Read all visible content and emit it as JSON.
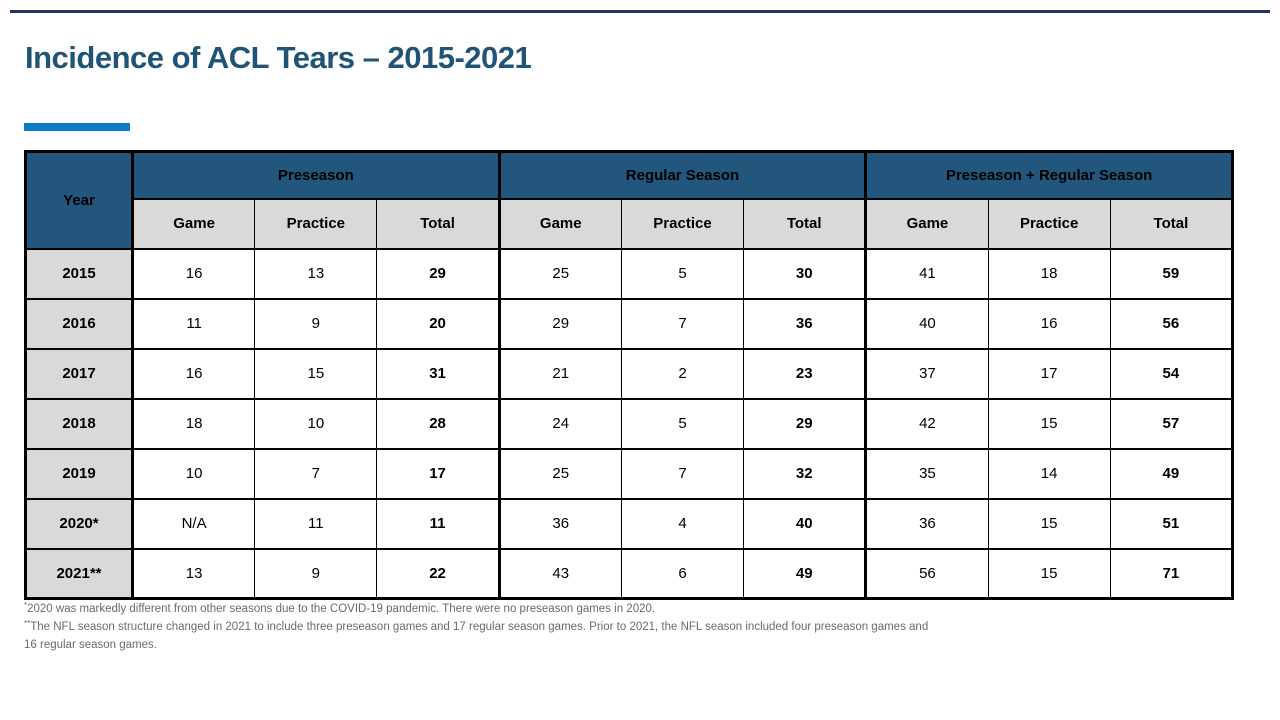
{
  "title": "Incidence of ACL Tears – 2015-2021",
  "table": {
    "year_header": "Year",
    "group_headers": [
      "Preseason",
      "Regular Season",
      "Preseason + Regular Season"
    ],
    "sub_headers": [
      "Game",
      "Practice",
      "Total"
    ],
    "rows": [
      {
        "year": "2015",
        "cells": [
          "16",
          "13",
          "29",
          "25",
          "5",
          "30",
          "41",
          "18",
          "59"
        ]
      },
      {
        "year": "2016",
        "cells": [
          "11",
          "9",
          "20",
          "29",
          "7",
          "36",
          "40",
          "16",
          "56"
        ]
      },
      {
        "year": "2017",
        "cells": [
          "16",
          "15",
          "31",
          "21",
          "2",
          "23",
          "37",
          "17",
          "54"
        ]
      },
      {
        "year": "2018",
        "cells": [
          "18",
          "10",
          "28",
          "24",
          "5",
          "29",
          "42",
          "15",
          "57"
        ]
      },
      {
        "year": "2019",
        "cells": [
          "10",
          "7",
          "17",
          "25",
          "7",
          "32",
          "35",
          "14",
          "49"
        ]
      },
      {
        "year": "2020*",
        "cells": [
          "N/A",
          "11",
          "11",
          "36",
          "4",
          "40",
          "36",
          "15",
          "51"
        ]
      },
      {
        "year": "2021**",
        "cells": [
          "13",
          "9",
          "22",
          "43",
          "6",
          "49",
          "56",
          "15",
          "71"
        ]
      }
    ]
  },
  "footnotes": [
    {
      "marker": "*",
      "text": "2020 was markedly different from other seasons due to the COVID-19 pandemic. There were no preseason games in 2020."
    },
    {
      "marker": "**",
      "text": "The NFL season structure changed in 2021 to include three preseason games and 17 regular season games. Prior to 2021, the NFL season included four preseason games and 16 regular season games."
    }
  ],
  "colors": {
    "header_blue": "#23567C",
    "title_blue": "#1F5477",
    "accent_bar_blue": "#0E7DC9",
    "subheader_gray": "#D9D9D9",
    "border_black": "#000000",
    "footnote_gray": "#6A6A6A"
  }
}
